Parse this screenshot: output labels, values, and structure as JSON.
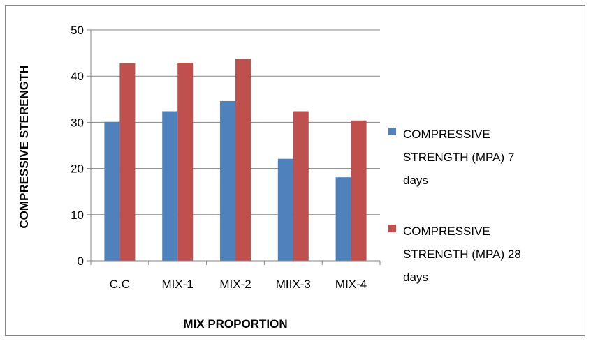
{
  "chart_data": {
    "type": "bar",
    "categories": [
      "C.C",
      "MIX-1",
      "MIX-2",
      "MIIX-3",
      "MIX-4"
    ],
    "series": [
      {
        "name": "COMPRESSIVE STRENGTH (MPA) 7 days",
        "name_lines": [
          "COMPRESSIVE",
          "STRENGTH (MPA) 7",
          "days"
        ],
        "color": "#4f81bd",
        "values": [
          30.1,
          32.4,
          34.6,
          22.1,
          18.1
        ]
      },
      {
        "name": "COMPRESSIVE STRENGTH (MPA) 28 days",
        "name_lines": [
          "COMPRESSIVE",
          "STRENGTH (MPA) 28",
          "days"
        ],
        "color": "#c0504d",
        "values": [
          42.8,
          42.9,
          43.7,
          32.4,
          30.4
        ]
      }
    ],
    "xlabel": "MIX PROPORTION",
    "ylabel": "COMPRESSIVE STERENGTH",
    "ylim": [
      0,
      50
    ],
    "yticks": [
      0,
      10,
      20,
      30,
      40,
      50
    ],
    "grid": true,
    "legend_position": "right"
  }
}
